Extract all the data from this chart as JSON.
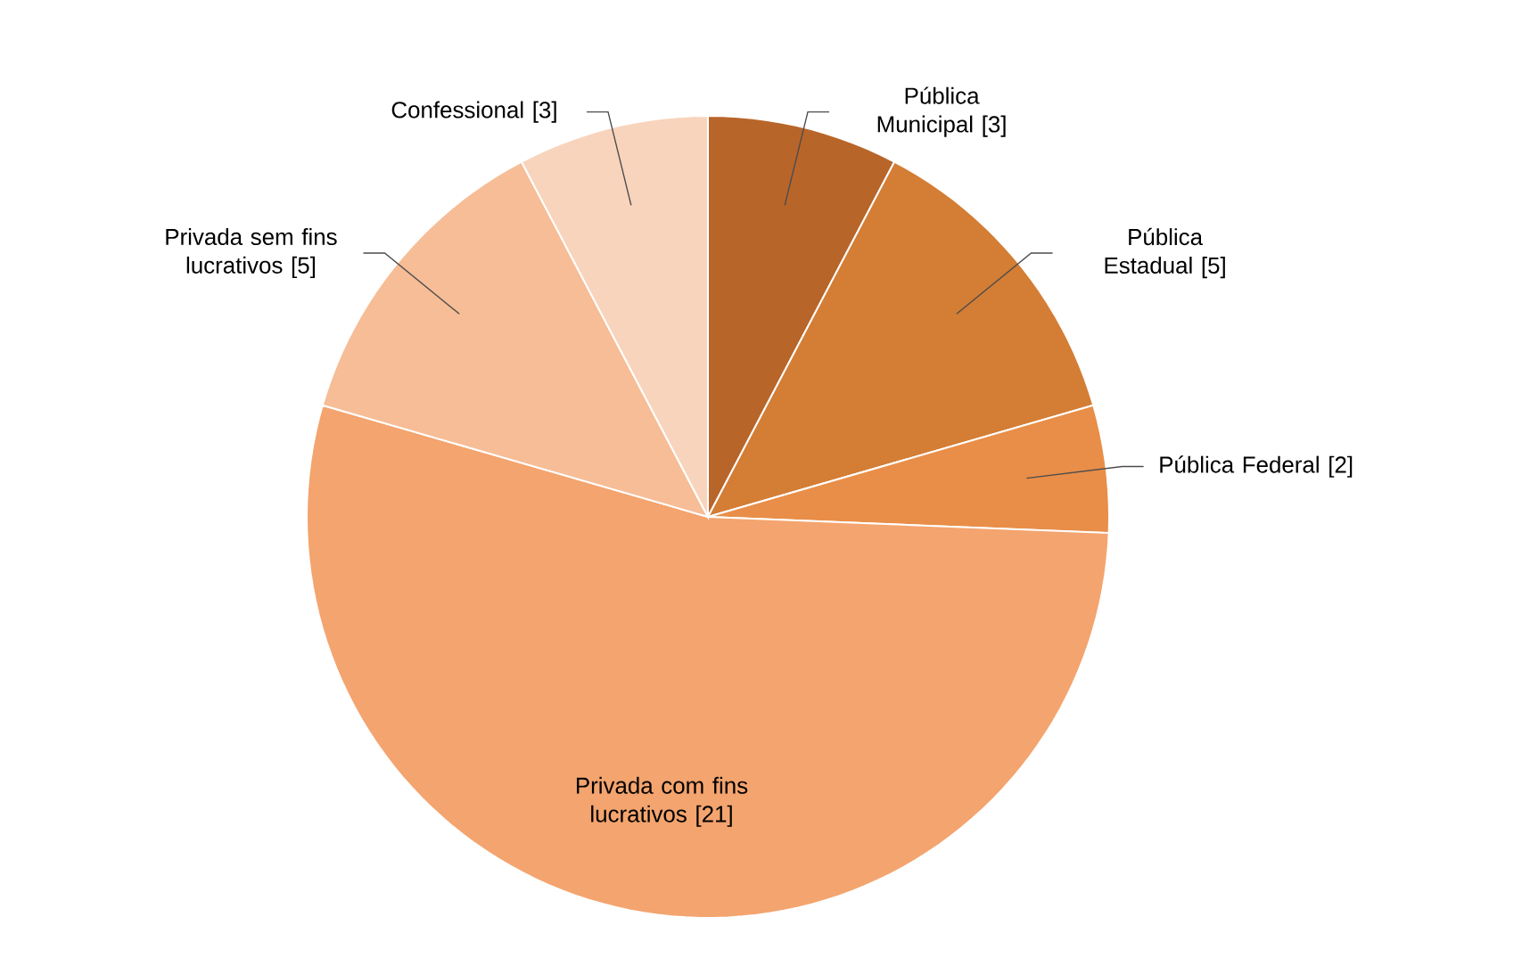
{
  "chart_data": {
    "type": "pie",
    "categories": [
      "Pública Municipal",
      "Pública Estadual",
      "Pública Federal",
      "Privada com fins lucrativos",
      "Privada sem fins lucrativos",
      "Confessional"
    ],
    "values": [
      3,
      5,
      2,
      21,
      5,
      3
    ],
    "colors": [
      "#b8652a",
      "#d47d35",
      "#e88e48",
      "#f4a46e",
      "#f6bd96",
      "#f8d4bd"
    ],
    "value_labels": [
      "[3]",
      "[5]",
      "[2]",
      "[21]",
      "[5]",
      "[3]"
    ]
  }
}
